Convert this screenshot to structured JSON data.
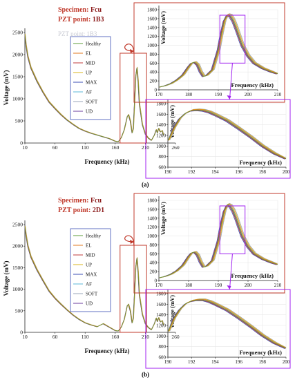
{
  "panels": [
    {
      "letter": "(a)",
      "specimen_label": "Specimen:",
      "specimen": "Fcu",
      "pzt_label": "PZT point:",
      "pzt": "1B3",
      "ghost_text": "PZT point: 1B3"
    },
    {
      "letter": "(b)",
      "specimen_label": "Specimen:",
      "specimen": "Fcu",
      "pzt_label": "PZT point:",
      "pzt": "2D1",
      "ghost_text": ""
    }
  ],
  "colors": {
    "zoom1_box": "#c0392b",
    "zoom2_box": "#a020f0",
    "series": [
      "#5e9c3a",
      "#e07a1f",
      "#c13b3b",
      "#d9b51e",
      "#3b4fb5",
      "#5bb7d9",
      "#9aa5b8",
      "#6b3e9c"
    ]
  },
  "chart_data": [
    {
      "type": "line",
      "panel": "a-main",
      "xlabel": "Frequency (kHz)",
      "ylabel": "Voltage (mV)",
      "xlim": [
        10,
        260
      ],
      "ylim": [
        0,
        2500
      ],
      "xticks": [
        10,
        60,
        110,
        160,
        210,
        260
      ],
      "yticks": [
        0,
        500,
        1000,
        1500,
        2000,
        2500
      ],
      "legend": [
        "Healthy",
        "EL",
        "MID",
        "UP",
        "MAX",
        "AF",
        "SOFT",
        "UD"
      ],
      "x": [
        10,
        12,
        15,
        20,
        30,
        40,
        50,
        60,
        70,
        80,
        90,
        100,
        110,
        120,
        130,
        140,
        150,
        160,
        165,
        170,
        175,
        180,
        182,
        185,
        188,
        190,
        192,
        194,
        196,
        198,
        200,
        205,
        210,
        215,
        220,
        225,
        228,
        230,
        232,
        235,
        238,
        240
      ],
      "y": [
        2450,
        2200,
        1950,
        1700,
        1400,
        1150,
        930,
        780,
        640,
        520,
        420,
        330,
        270,
        220,
        180,
        140,
        100,
        40,
        30,
        120,
        300,
        600,
        640,
        500,
        230,
        320,
        900,
        1500,
        1700,
        1400,
        900,
        420,
        200,
        110,
        60,
        180,
        300,
        230,
        330,
        250,
        280,
        180
      ]
    },
    {
      "type": "line",
      "panel": "a-zoom1",
      "xlabel": "Frequency (kHz)",
      "ylabel": "Voltage (mV)",
      "xlim": [
        170,
        210
      ],
      "ylim": [
        0,
        1800
      ],
      "xticks": [
        170,
        180,
        190,
        200,
        210
      ],
      "yticks": [
        0,
        200,
        400,
        600,
        800,
        1000,
        1200,
        1400,
        1600,
        1800
      ],
      "x": [
        170,
        172,
        174,
        176,
        178,
        180,
        181,
        182,
        183,
        184,
        185,
        186,
        188,
        190,
        191,
        192,
        193,
        194,
        195,
        196,
        198,
        200,
        202,
        205,
        208,
        210
      ],
      "y": [
        60,
        90,
        140,
        220,
        330,
        520,
        600,
        620,
        560,
        400,
        300,
        320,
        450,
        900,
        1250,
        1550,
        1680,
        1660,
        1550,
        1380,
        1000,
        760,
        600,
        480,
        400,
        360
      ]
    },
    {
      "type": "line",
      "panel": "a-zoom2",
      "xlabel": "Frequency (kHz)",
      "ylabel": "Voltage (mV)",
      "xlim": [
        190,
        200
      ],
      "ylim": [
        600,
        1800
      ],
      "xticks": [
        190,
        192,
        194,
        196,
        198,
        200
      ],
      "yticks": [
        600,
        800,
        1000,
        1200,
        1400,
        1600,
        1800
      ],
      "x": [
        190,
        190.5,
        191,
        191.5,
        192,
        192.5,
        193,
        193.5,
        194,
        195,
        196,
        197,
        198,
        199,
        200
      ],
      "y": [
        1100,
        1340,
        1520,
        1620,
        1670,
        1680,
        1670,
        1640,
        1590,
        1480,
        1330,
        1170,
        1000,
        860,
        760
      ]
    },
    {
      "type": "line",
      "panel": "b-main",
      "xlabel": "Frequency (kHz)",
      "ylabel": "Voltage (mV)",
      "xlim": [
        10,
        260
      ],
      "ylim": [
        0,
        2500
      ],
      "xticks": [
        10,
        60,
        110,
        160,
        210,
        260
      ],
      "yticks": [
        0,
        500,
        1000,
        1500,
        2000,
        2500
      ],
      "legend": [
        "Healthy",
        "EL",
        "MID",
        "UP",
        "MAX",
        "AF",
        "SOFT",
        "UD"
      ],
      "x": [
        10,
        12,
        15,
        20,
        30,
        40,
        50,
        60,
        70,
        80,
        90,
        100,
        110,
        120,
        130,
        140,
        150,
        160,
        165,
        170,
        175,
        180,
        182,
        185,
        188,
        190,
        192,
        194,
        196,
        198,
        200,
        205,
        210,
        215,
        220,
        225,
        228,
        230,
        232,
        235,
        238,
        240
      ],
      "y": [
        2450,
        2250,
        2000,
        1750,
        1450,
        1200,
        960,
        790,
        650,
        520,
        400,
        300,
        220,
        170,
        130,
        200,
        120,
        40,
        30,
        120,
        300,
        620,
        650,
        500,
        220,
        320,
        900,
        1500,
        1720,
        1400,
        880,
        420,
        200,
        110,
        60,
        200,
        330,
        250,
        340,
        240,
        270,
        170
      ]
    },
    {
      "type": "line",
      "panel": "b-zoom1",
      "xlabel": "Frequency (kHz)",
      "ylabel": "Voltage (mV)",
      "xlim": [
        170,
        210
      ],
      "ylim": [
        0,
        1800
      ],
      "xticks": [
        170,
        180,
        190,
        200,
        210
      ],
      "yticks": [
        0,
        200,
        400,
        600,
        800,
        1000,
        1200,
        1400,
        1600,
        1800
      ],
      "x": [
        170,
        172,
        174,
        176,
        178,
        180,
        181,
        182,
        183,
        184,
        185,
        186,
        188,
        190,
        191,
        192,
        193,
        194,
        195,
        196,
        198,
        200,
        202,
        205,
        208,
        210
      ],
      "y": [
        60,
        90,
        140,
        220,
        340,
        540,
        620,
        640,
        570,
        410,
        300,
        320,
        450,
        900,
        1260,
        1560,
        1700,
        1670,
        1560,
        1390,
        1000,
        760,
        600,
        480,
        400,
        360
      ]
    },
    {
      "type": "line",
      "panel": "b-zoom2",
      "xlabel": "Frequency (kHz)",
      "ylabel": "Voltage (mV)",
      "xlim": [
        190,
        200
      ],
      "ylim": [
        600,
        1800
      ],
      "xticks": [
        190,
        192,
        194,
        196,
        198,
        200
      ],
      "yticks": [
        600,
        800,
        1000,
        1200,
        1400,
        1600,
        1800
      ],
      "x": [
        190,
        190.5,
        191,
        191.5,
        192,
        192.5,
        193,
        193.5,
        194,
        195,
        196,
        197,
        198,
        199,
        200
      ],
      "y": [
        1080,
        1330,
        1500,
        1610,
        1660,
        1680,
        1680,
        1650,
        1600,
        1490,
        1340,
        1180,
        1010,
        870,
        770
      ]
    }
  ]
}
